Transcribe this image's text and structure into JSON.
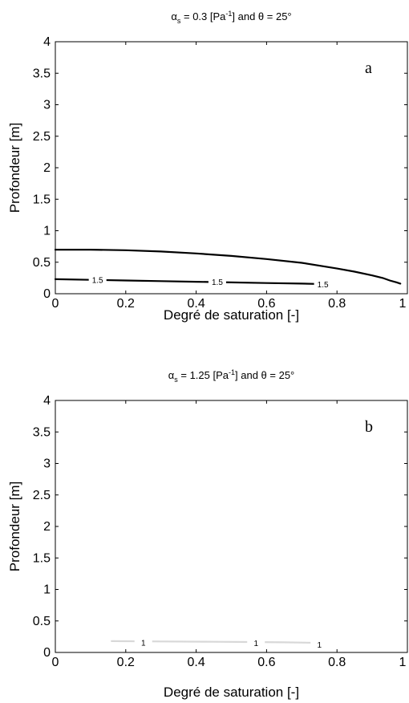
{
  "chart_data": [
    {
      "type": "line",
      "title": "α_s = 0.3 [Pa⁻¹] and θ = 25°",
      "title_parts": {
        "alpha": "α",
        "alpha_sub": "s",
        "pre_exp": " = 0.3 [Pa",
        "exp": "-1",
        "post_exp": "] and  θ = 25°"
      },
      "panel_label": "a",
      "xlabel": "Degré de saturation [-]",
      "ylabel": "Profondeur [m]",
      "xlim": [
        0,
        1
      ],
      "ylim": [
        0,
        4
      ],
      "xticks": [
        "0",
        "0.2",
        "0.4",
        "0.6",
        "0.8",
        "1"
      ],
      "yticks": [
        "0",
        "0.5",
        "1",
        "1.5",
        "2",
        "2.5",
        "3",
        "3.5",
        "4"
      ],
      "grid": false,
      "series": [
        {
          "color": "#000000",
          "x": [
            0.0,
            0.1,
            0.2,
            0.3,
            0.4,
            0.5,
            0.6,
            0.7,
            0.8,
            0.85,
            0.9,
            0.93,
            0.95,
            0.97,
            0.98
          ],
          "y": [
            0.7,
            0.7,
            0.69,
            0.67,
            0.64,
            0.6,
            0.55,
            0.49,
            0.4,
            0.35,
            0.29,
            0.25,
            0.21,
            0.18,
            0.16
          ]
        },
        {
          "color": "#000000",
          "x": [
            0.0,
            0.1,
            0.2,
            0.3,
            0.4,
            0.5,
            0.6,
            0.7,
            0.78
          ],
          "y": [
            0.23,
            0.22,
            0.21,
            0.2,
            0.19,
            0.18,
            0.17,
            0.16,
            0.15
          ]
        }
      ],
      "contour_labels": [
        {
          "text": "1.5",
          "x": 0.12,
          "y": 0.22
        },
        {
          "text": "1.5",
          "x": 0.46,
          "y": 0.19
        },
        {
          "text": "1.5",
          "x": 0.76,
          "y": 0.15
        }
      ]
    },
    {
      "type": "line",
      "title": "α_s = 1.25 [Pa⁻¹] and θ = 25°",
      "title_parts": {
        "alpha": "α",
        "alpha_sub": "s",
        "pre_exp": " = 1.25 [Pa",
        "exp": "-1",
        "post_exp": "] and  θ = 25°"
      },
      "panel_label": "b",
      "xlabel": "Degré de saturation [-]",
      "ylabel": "Profondeur [m]",
      "xlim": [
        0,
        1
      ],
      "ylim": [
        0,
        4
      ],
      "xticks": [
        "0",
        "0.2",
        "0.4",
        "0.6",
        "0.8",
        "1"
      ],
      "yticks": [
        "0",
        "0.5",
        "1",
        "1.5",
        "2",
        "2.5",
        "3",
        "3.5",
        "4"
      ],
      "grid": false,
      "series": [
        {
          "color": "#d8d8d8",
          "x": [
            0.16,
            0.3,
            0.45,
            0.55,
            0.65,
            0.77
          ],
          "y": [
            0.18,
            0.175,
            0.17,
            0.165,
            0.16,
            0.15
          ]
        }
      ],
      "contour_labels": [
        {
          "text": "1",
          "x": 0.25,
          "y": 0.16
        },
        {
          "text": "1",
          "x": 0.57,
          "y": 0.15
        },
        {
          "text": "1",
          "x": 0.75,
          "y": 0.13
        }
      ]
    }
  ]
}
